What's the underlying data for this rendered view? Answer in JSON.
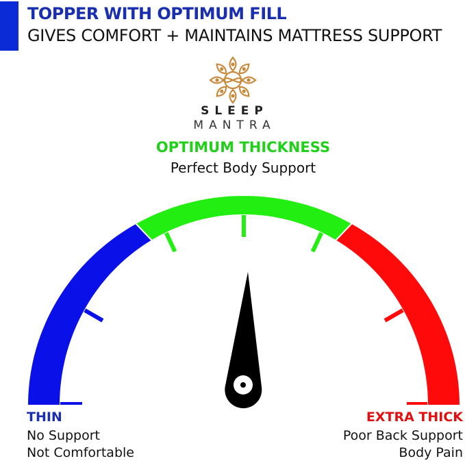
{
  "header": {
    "title": "TOPPER WITH OPTIMUM FILL",
    "subtitle": "GIVES COMFORT + MAINTAINS MATTRESS SUPPORT",
    "accent_color": "#0a2bd6"
  },
  "logo": {
    "line1": "SLEEP",
    "line2": "MANTRA",
    "color": "#c8893a"
  },
  "gauge": {
    "optimum": {
      "heading": "OPTIMUM THICKNESS",
      "description": "Perfect Body Support",
      "color": "#22ee11"
    },
    "thin": {
      "heading": "THIN",
      "line1": "No Support",
      "line2": "Not Comfortable",
      "color": "#0a10e8"
    },
    "extra_thick": {
      "heading": "EXTRA THICK",
      "line1": "Poor Back Support",
      "line2": "Body Pain",
      "color": "#ff0a0a"
    },
    "needle_position": "optimum"
  }
}
